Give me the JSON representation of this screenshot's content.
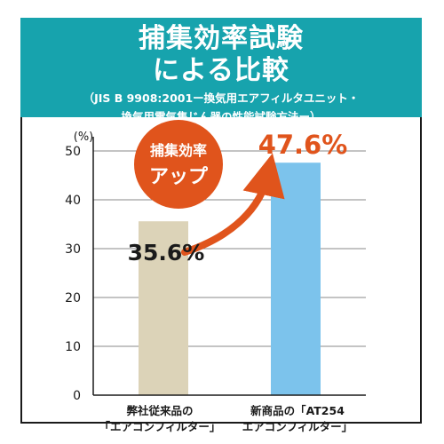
{
  "header": {
    "title_line1": "捕集効率試験",
    "title_line2": "による比較",
    "subtitle_line1": "（JIS B 9908:2001ー換気用エアフィルタユニット・",
    "subtitle_line2": "換気用電気集じん器の性能試験方法ー）"
  },
  "badge": {
    "line1": "捕集効率",
    "line2": "アップ"
  },
  "colors": {
    "header_bg": "#17a3ad",
    "bar_old": "#dcd3b8",
    "bar_new": "#7cc3ec",
    "accent": "#e0541c",
    "grid": "#888888"
  },
  "chart_data": {
    "type": "bar",
    "y_unit_label": "(%)",
    "ylim": [
      0,
      50
    ],
    "yticks": [
      0,
      10,
      20,
      30,
      40,
      50
    ],
    "categories": [
      {
        "line1": "弊社従来品の",
        "line2": "「エアコンフィルター」"
      },
      {
        "line1": "新商品の「AT254",
        "line2": "エアコンフィルター」"
      }
    ],
    "values": [
      35.6,
      47.6
    ],
    "value_labels": [
      "35.6%",
      "47.6%"
    ]
  }
}
